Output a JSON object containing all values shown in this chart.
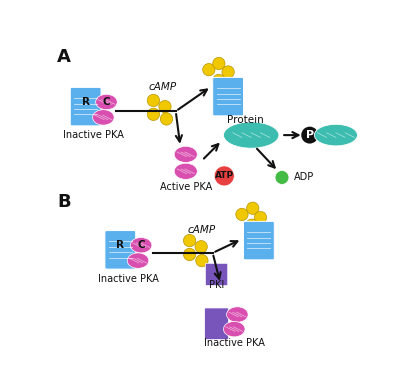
{
  "background_color": "#ffffff",
  "blue_color": "#5aafed",
  "magenta_color": "#d94faf",
  "yellow_color": "#f0c800",
  "teal_color": "#3dbdb0",
  "red_color": "#e84040",
  "green_color": "#44bb44",
  "black_color": "#111111",
  "purple_color": "#7755bb",
  "label_A": "A",
  "label_B": "B",
  "label_R": "R",
  "label_C": "C",
  "label_inactive_pka": "Inactive PKA",
  "label_camp": "cAMP",
  "label_active_pka": "Active PKA",
  "label_protein": "Protein",
  "label_atp": "ATP",
  "label_adp": "ADP",
  "label_pki": "PKI",
  "label_p": "P"
}
